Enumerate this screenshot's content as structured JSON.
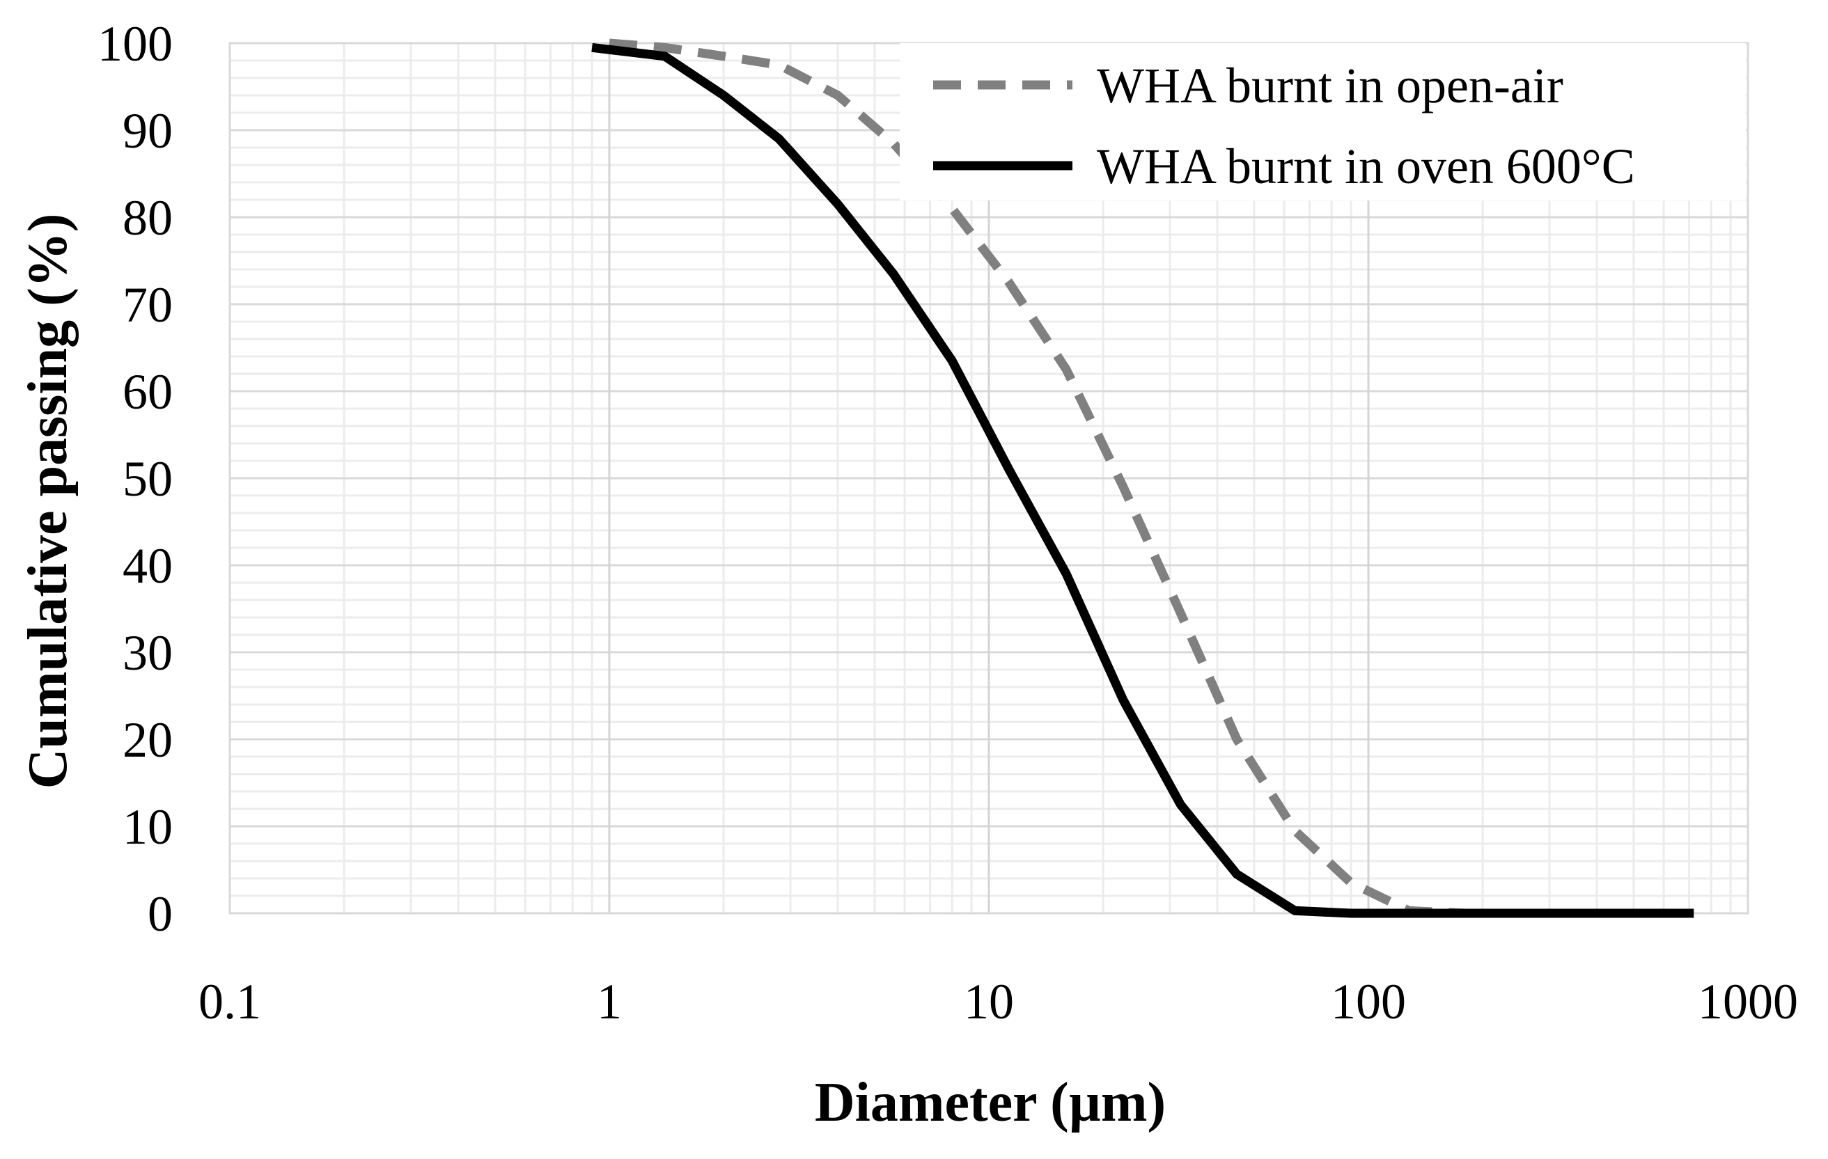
{
  "chart_data": {
    "type": "line",
    "xlabel": "Diameter (µm)",
    "ylabel": "Cumulative passing (%)",
    "x_scale": "log",
    "xlim": [
      0.1,
      1000
    ],
    "ylim": [
      0,
      100
    ],
    "x_ticks": [
      "0.1",
      "1",
      "10",
      "100",
      "1000"
    ],
    "y_ticks": [
      "0",
      "10",
      "20",
      "30",
      "40",
      "50",
      "60",
      "70",
      "80",
      "90",
      "100"
    ],
    "grid": true,
    "legend_position": "top-right",
    "series": [
      {
        "name": "WHA burnt in open-air",
        "color": "#808080",
        "style": "dashed",
        "x": [
          1,
          1.4,
          2,
          2.8,
          4,
          5.6,
          8,
          11.3,
          16,
          22.6,
          32,
          45,
          64,
          90,
          128,
          180,
          256,
          360,
          512,
          720
        ],
        "y": [
          100,
          99.5,
          98.5,
          97.5,
          94,
          88.5,
          81,
          72.5,
          62.5,
          49,
          34.5,
          20,
          9.5,
          3.5,
          0.3,
          0,
          0,
          0,
          0,
          0
        ]
      },
      {
        "name": "WHA burnt in oven 600°C",
        "color": "#000000",
        "style": "solid",
        "x": [
          0.9,
          1.4,
          2,
          2.8,
          4,
          5.6,
          8,
          11.3,
          16,
          22.6,
          32,
          45,
          64,
          90,
          128,
          180,
          256,
          360,
          512,
          720
        ],
        "y": [
          99.5,
          98.5,
          94,
          89,
          81.5,
          73.5,
          63.5,
          51,
          39,
          24.5,
          12.5,
          4.5,
          0.3,
          0,
          0,
          0,
          0,
          0,
          0,
          0
        ]
      }
    ]
  }
}
